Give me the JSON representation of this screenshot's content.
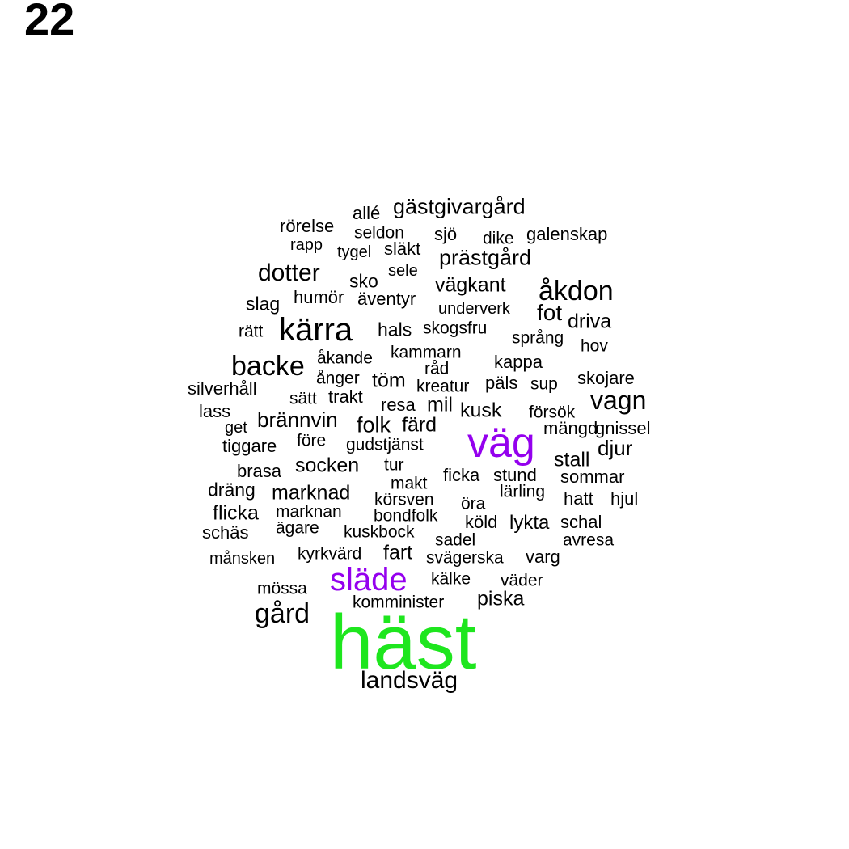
{
  "figure_number": "22",
  "colors": {
    "default": "#000000",
    "medium": "#9400ee",
    "top": "#1ee61e"
  },
  "words": [
    {
      "text": "häst",
      "tier": "top"
    },
    {
      "text": "väg",
      "tier": "medium"
    },
    {
      "text": "släde",
      "tier": "medium"
    },
    {
      "text": "kärra",
      "tier": "default"
    },
    {
      "text": "backe",
      "tier": "default"
    },
    {
      "text": "åkdon",
      "tier": "default"
    },
    {
      "text": "vagn",
      "tier": "default"
    },
    {
      "text": "gård",
      "tier": "default"
    },
    {
      "text": "landsväg",
      "tier": "default"
    },
    {
      "text": "dotter",
      "tier": "default"
    },
    {
      "text": "gästgivargård",
      "tier": "default"
    },
    {
      "text": "prästgård",
      "tier": "default"
    },
    {
      "text": "vägkant",
      "tier": "default"
    },
    {
      "text": "fot",
      "tier": "default"
    },
    {
      "text": "driva",
      "tier": "default"
    },
    {
      "text": "brännvin",
      "tier": "default"
    },
    {
      "text": "folk",
      "tier": "default"
    },
    {
      "text": "färd",
      "tier": "default"
    },
    {
      "text": "kusk",
      "tier": "default"
    },
    {
      "text": "töm",
      "tier": "default"
    },
    {
      "text": "mil",
      "tier": "default"
    },
    {
      "text": "djur",
      "tier": "default"
    },
    {
      "text": "stall",
      "tier": "default"
    },
    {
      "text": "socken",
      "tier": "default"
    },
    {
      "text": "marknad",
      "tier": "default"
    },
    {
      "text": "flicka",
      "tier": "default"
    },
    {
      "text": "dräng",
      "tier": "default"
    },
    {
      "text": "fart",
      "tier": "default"
    },
    {
      "text": "piska",
      "tier": "default"
    },
    {
      "text": "lykta",
      "tier": "default"
    },
    {
      "text": "allé",
      "tier": "default"
    },
    {
      "text": "rörelse",
      "tier": "default"
    },
    {
      "text": "seldon",
      "tier": "default"
    },
    {
      "text": "sjö",
      "tier": "default"
    },
    {
      "text": "dike",
      "tier": "default"
    },
    {
      "text": "galenskap",
      "tier": "default"
    },
    {
      "text": "rapp",
      "tier": "default"
    },
    {
      "text": "tygel",
      "tier": "default"
    },
    {
      "text": "släkt",
      "tier": "default"
    },
    {
      "text": "sele",
      "tier": "default"
    },
    {
      "text": "sko",
      "tier": "default"
    },
    {
      "text": "slag",
      "tier": "default"
    },
    {
      "text": "humör",
      "tier": "default"
    },
    {
      "text": "äventyr",
      "tier": "default"
    },
    {
      "text": "underverk",
      "tier": "default"
    },
    {
      "text": "rätt",
      "tier": "default"
    },
    {
      "text": "hals",
      "tier": "default"
    },
    {
      "text": "skogsfru",
      "tier": "default"
    },
    {
      "text": "språng",
      "tier": "default"
    },
    {
      "text": "hov",
      "tier": "default"
    },
    {
      "text": "kammarn",
      "tier": "default"
    },
    {
      "text": "åkande",
      "tier": "default"
    },
    {
      "text": "kappa",
      "tier": "default"
    },
    {
      "text": "råd",
      "tier": "default"
    },
    {
      "text": "ånger",
      "tier": "default"
    },
    {
      "text": "kreatur",
      "tier": "default"
    },
    {
      "text": "päls",
      "tier": "default"
    },
    {
      "text": "sup",
      "tier": "default"
    },
    {
      "text": "skojare",
      "tier": "default"
    },
    {
      "text": "silverhåll",
      "tier": "default"
    },
    {
      "text": "sätt",
      "tier": "default"
    },
    {
      "text": "trakt",
      "tier": "default"
    },
    {
      "text": "resa",
      "tier": "default"
    },
    {
      "text": "lass",
      "tier": "default"
    },
    {
      "text": "försök",
      "tier": "default"
    },
    {
      "text": "get",
      "tier": "default"
    },
    {
      "text": "mängd",
      "tier": "default"
    },
    {
      "text": "gnissel",
      "tier": "default"
    },
    {
      "text": "tiggare",
      "tier": "default"
    },
    {
      "text": "före",
      "tier": "default"
    },
    {
      "text": "gudstjänst",
      "tier": "default"
    },
    {
      "text": "brasa",
      "tier": "default"
    },
    {
      "text": "tur",
      "tier": "default"
    },
    {
      "text": "ficka",
      "tier": "default"
    },
    {
      "text": "stund",
      "tier": "default"
    },
    {
      "text": "sommar",
      "tier": "default"
    },
    {
      "text": "makt",
      "tier": "default"
    },
    {
      "text": "lärling",
      "tier": "default"
    },
    {
      "text": "körsven",
      "tier": "default"
    },
    {
      "text": "öra",
      "tier": "default"
    },
    {
      "text": "hatt",
      "tier": "default"
    },
    {
      "text": "hjul",
      "tier": "default"
    },
    {
      "text": "marknan",
      "tier": "default"
    },
    {
      "text": "bondfolk",
      "tier": "default"
    },
    {
      "text": "köld",
      "tier": "default"
    },
    {
      "text": "schal",
      "tier": "default"
    },
    {
      "text": "schäs",
      "tier": "default"
    },
    {
      "text": "ägare",
      "tier": "default"
    },
    {
      "text": "kuskbock",
      "tier": "default"
    },
    {
      "text": "sadel",
      "tier": "default"
    },
    {
      "text": "avresa",
      "tier": "default"
    },
    {
      "text": "månsken",
      "tier": "default"
    },
    {
      "text": "kyrkvärd",
      "tier": "default"
    },
    {
      "text": "svägerska",
      "tier": "default"
    },
    {
      "text": "varg",
      "tier": "default"
    },
    {
      "text": "kälke",
      "tier": "default"
    },
    {
      "text": "väder",
      "tier": "default"
    },
    {
      "text": "mössa",
      "tier": "default"
    },
    {
      "text": "komminister",
      "tier": "default"
    }
  ]
}
